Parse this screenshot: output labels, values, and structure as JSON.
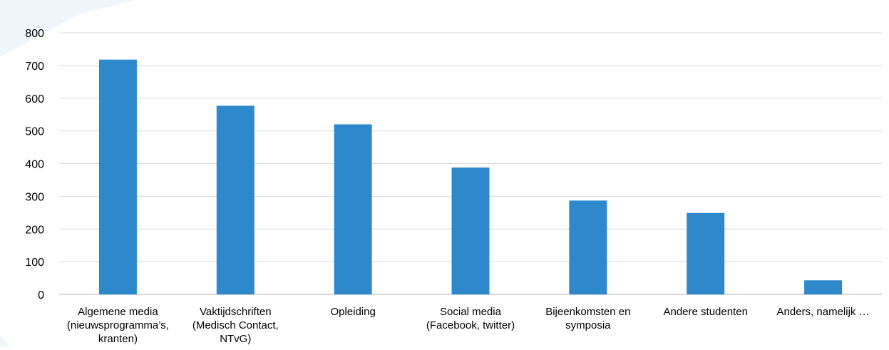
{
  "colors": {
    "bar": "#2e89cc",
    "grid": "#d9d9d9",
    "axis": "#bfbfbf",
    "text": "#000000",
    "background_accent": "#eaf4fb"
  },
  "chart_data": {
    "type": "bar",
    "title": "",
    "xlabel": "",
    "ylabel": "",
    "ylim": [
      0,
      800
    ],
    "yticks": [
      0,
      100,
      200,
      300,
      400,
      500,
      600,
      700,
      800
    ],
    "grid": true,
    "legend": "none",
    "categories": [
      [
        "Algemene media",
        "(nieuwsprogramma’s,",
        "kranten)"
      ],
      [
        "Vaktijdschriften",
        "(Medisch Contact,",
        "NTvG)"
      ],
      [
        "Opleiding"
      ],
      [
        "Social media",
        "(Facebook, twitter)"
      ],
      [
        "Bijeenkomsten en",
        "symposia"
      ],
      [
        "Andere studenten"
      ],
      [
        "Anders, namelijk …"
      ]
    ],
    "values": [
      718,
      577,
      520,
      388,
      287,
      249,
      43
    ]
  }
}
